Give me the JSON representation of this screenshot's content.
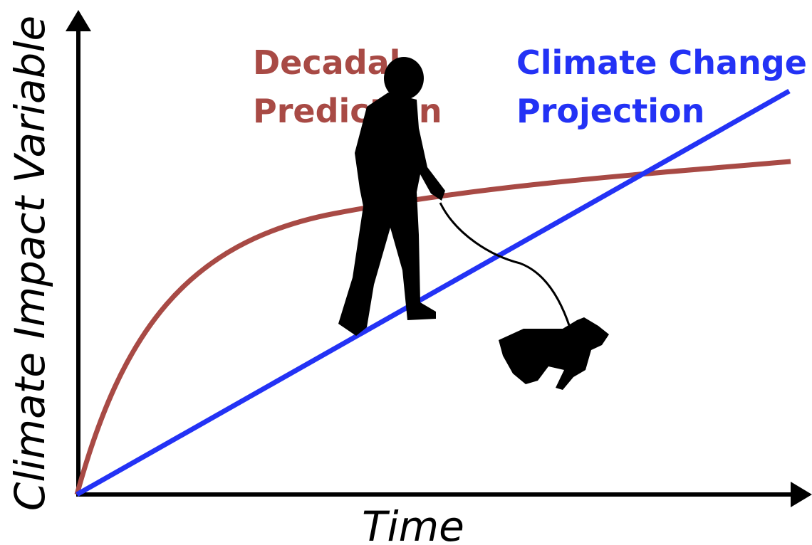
{
  "x_axis_label": "Time",
  "y_axis_label": "Climate Impact Variable",
  "curves": [
    {
      "label_lines": [
        "Decadal",
        "Prediction"
      ],
      "color": "#a84a45"
    },
    {
      "label_lines": [
        "Climate Change",
        "Projection"
      ],
      "color": "#2332f5"
    }
  ]
}
